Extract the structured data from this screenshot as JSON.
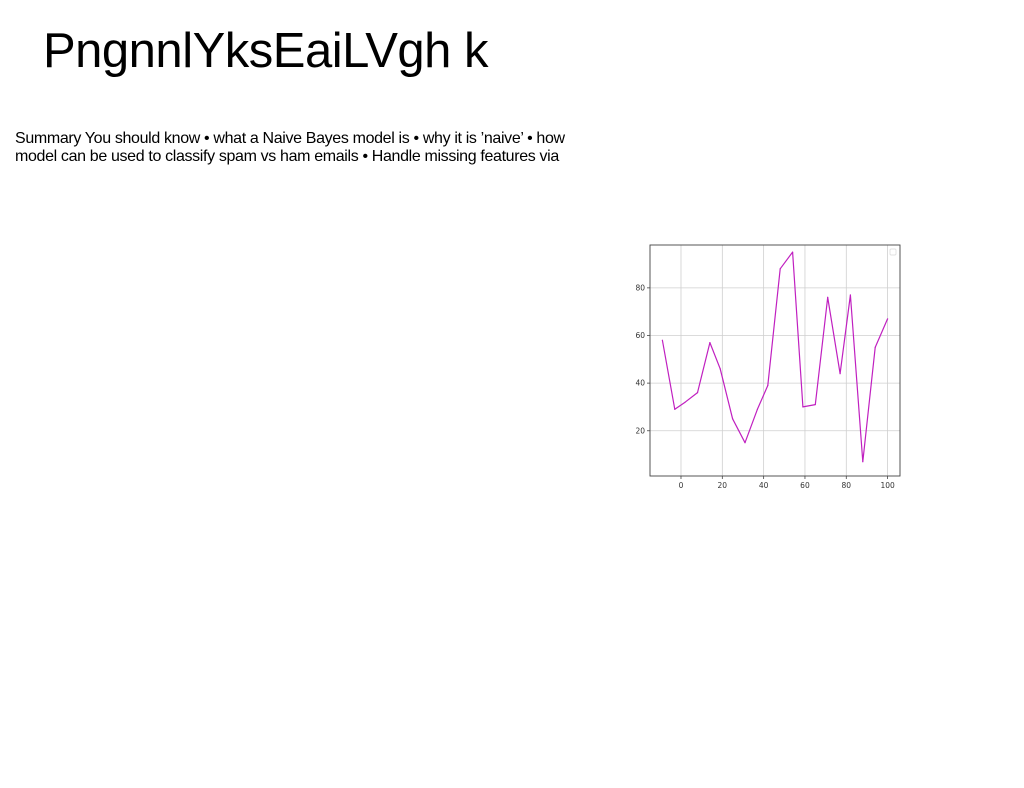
{
  "slide": {
    "title": "PngnnlYksEaiLVgh k",
    "summary_lines": [
      "Summary You should know • what a Naive Bayes model is • why it is ’naive’ • how",
      "model can be used to classify spam vs ham emails • Handle missing features via"
    ]
  },
  "chart_data": {
    "type": "line",
    "title": "",
    "xlabel": "",
    "ylabel": "",
    "x": [
      -9,
      -3,
      2,
      8,
      14,
      19,
      25,
      31,
      37,
      42,
      48,
      54,
      59,
      65,
      71,
      77,
      82,
      88,
      94,
      100
    ],
    "series": [
      {
        "color": "#c020c0",
        "values": [
          58,
          29,
          32,
          36,
          57,
          46,
          25,
          15,
          29,
          39,
          88,
          95,
          30,
          31,
          76,
          44,
          77,
          7,
          55,
          67
        ]
      }
    ],
    "xlim": [
      -15,
      106
    ],
    "ylim": [
      1,
      98
    ],
    "xticks": [
      0,
      20,
      40,
      60,
      80,
      100
    ],
    "yticks": [
      20,
      40,
      60,
      80
    ],
    "xtick_labels": [
      "0",
      "20",
      "40",
      "60",
      "80",
      "100"
    ],
    "ytick_labels": [
      "20",
      "40",
      "60",
      "80"
    ],
    "grid": true,
    "legend": "top-right"
  }
}
